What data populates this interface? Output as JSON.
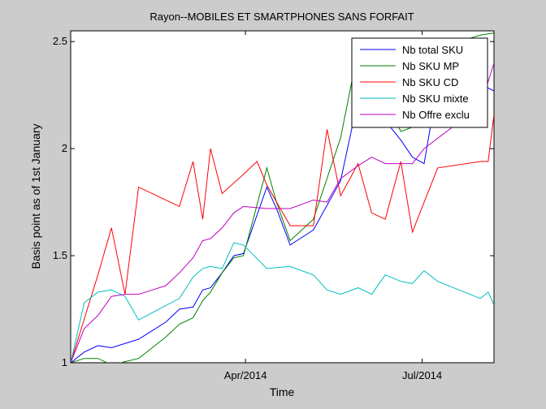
{
  "chart_data": {
    "type": "line",
    "title": "Rayon--MOBILES ET SMARTPHONES SANS FORFAIT",
    "xlabel": "Time",
    "ylabel": "Basis point as of 1st January",
    "xlim": [
      "2014-01-01",
      "2014-08-07"
    ],
    "ylim": [
      1,
      2.55
    ],
    "xticks": [
      {
        "value": "2014-04-01",
        "label": "Apr/2014"
      },
      {
        "value": "2014-07-01",
        "label": "Jul/2014"
      }
    ],
    "yticks": [
      {
        "value": 1,
        "label": "1"
      },
      {
        "value": 1.5,
        "label": "1.5"
      },
      {
        "value": 2,
        "label": "2"
      },
      {
        "value": 2.5,
        "label": "2.5"
      }
    ],
    "grid": false,
    "legend_position": "top-right",
    "series": [
      {
        "name": "Nb total SKU",
        "color": "#0000ff",
        "x": [
          "2014-01-01",
          "2014-01-08",
          "2014-01-15",
          "2014-01-22",
          "2014-02-05",
          "2014-02-12",
          "2014-02-19",
          "2014-02-26",
          "2014-03-05",
          "2014-03-10",
          "2014-03-14",
          "2014-03-20",
          "2014-03-26",
          "2014-03-31",
          "2014-04-12",
          "2014-04-17",
          "2014-04-24",
          "2014-05-06",
          "2014-05-20",
          "2014-05-29",
          "2014-06-05",
          "2014-06-12",
          "2014-06-20",
          "2014-06-26",
          "2014-07-02",
          "2014-07-09",
          "2014-07-31",
          "2014-08-07"
        ],
        "values": [
          1.0,
          1.05,
          1.08,
          1.07,
          1.11,
          1.15,
          1.19,
          1.25,
          1.26,
          1.34,
          1.35,
          1.42,
          1.5,
          1.51,
          1.82,
          1.72,
          1.55,
          1.62,
          1.85,
          2.23,
          2.19,
          2.13,
          2.04,
          1.96,
          1.93,
          2.3,
          2.3,
          2.27
        ]
      },
      {
        "name": "Nb SKU MP",
        "color": "#008000",
        "x": [
          "2014-01-01",
          "2014-01-08",
          "2014-01-15",
          "2014-01-22",
          "2014-02-05",
          "2014-02-12",
          "2014-02-19",
          "2014-02-26",
          "2014-03-05",
          "2014-03-10",
          "2014-03-14",
          "2014-03-20",
          "2014-03-26",
          "2014-03-31",
          "2014-04-12",
          "2014-04-17",
          "2014-04-24",
          "2014-05-06",
          "2014-05-20",
          "2014-05-29",
          "2014-06-05",
          "2014-06-12",
          "2014-06-20",
          "2014-06-26",
          "2014-07-02",
          "2014-07-09",
          "2014-07-31",
          "2014-08-07"
        ],
        "values": [
          1.0,
          1.02,
          1.02,
          0.99,
          1.02,
          1.07,
          1.12,
          1.18,
          1.21,
          1.29,
          1.33,
          1.42,
          1.49,
          1.5,
          1.91,
          1.75,
          1.57,
          1.67,
          2.05,
          2.46,
          2.44,
          2.23,
          2.08,
          2.1,
          2.12,
          2.47,
          2.53,
          2.54
        ]
      },
      {
        "name": "Nb SKU CD",
        "color": "#ff0000",
        "x": [
          "2014-01-01",
          "2014-01-15",
          "2014-01-22",
          "2014-01-29",
          "2014-02-05",
          "2014-02-26",
          "2014-03-05",
          "2014-03-10",
          "2014-03-14",
          "2014-03-20",
          "2014-03-31",
          "2014-04-07",
          "2014-04-12",
          "2014-04-24",
          "2014-05-06",
          "2014-05-13",
          "2014-05-20",
          "2014-05-29",
          "2014-06-05",
          "2014-06-12",
          "2014-06-20",
          "2014-06-26",
          "2014-07-02",
          "2014-07-09",
          "2014-07-31",
          "2014-08-04",
          "2014-08-07"
        ],
        "values": [
          1.0,
          1.41,
          1.63,
          1.32,
          1.82,
          1.73,
          1.94,
          1.67,
          2.0,
          1.79,
          1.88,
          1.94,
          1.83,
          1.64,
          1.64,
          2.09,
          1.78,
          1.93,
          1.7,
          1.67,
          1.94,
          1.61,
          1.75,
          1.91,
          1.94,
          1.94,
          2.16
        ]
      },
      {
        "name": "Nb SKU mixte",
        "color": "#00bfbf",
        "x": [
          "2014-01-01",
          "2014-01-08",
          "2014-01-15",
          "2014-01-22",
          "2014-01-29",
          "2014-02-05",
          "2014-02-26",
          "2014-03-05",
          "2014-03-10",
          "2014-03-14",
          "2014-03-20",
          "2014-03-26",
          "2014-03-31",
          "2014-04-12",
          "2014-04-24",
          "2014-05-06",
          "2014-05-13",
          "2014-05-20",
          "2014-05-29",
          "2014-06-05",
          "2014-06-12",
          "2014-06-20",
          "2014-06-26",
          "2014-07-02",
          "2014-07-09",
          "2014-07-31",
          "2014-08-04",
          "2014-08-07"
        ],
        "values": [
          1.0,
          1.28,
          1.33,
          1.34,
          1.31,
          1.2,
          1.3,
          1.4,
          1.44,
          1.45,
          1.44,
          1.56,
          1.55,
          1.44,
          1.45,
          1.41,
          1.34,
          1.32,
          1.35,
          1.32,
          1.41,
          1.38,
          1.37,
          1.43,
          1.38,
          1.3,
          1.33,
          1.27
        ]
      },
      {
        "name": "Nb Offre exclu",
        "color": "#bf00bf",
        "x": [
          "2014-01-01",
          "2014-01-08",
          "2014-01-15",
          "2014-01-22",
          "2014-01-29",
          "2014-02-05",
          "2014-02-12",
          "2014-02-19",
          "2014-02-26",
          "2014-03-05",
          "2014-03-10",
          "2014-03-14",
          "2014-03-20",
          "2014-03-26",
          "2014-03-31",
          "2014-04-12",
          "2014-04-24",
          "2014-05-06",
          "2014-05-13",
          "2014-05-20",
          "2014-05-29",
          "2014-06-05",
          "2014-06-12",
          "2014-06-20",
          "2014-06-26",
          "2014-07-02",
          "2014-07-31",
          "2014-08-07"
        ],
        "values": [
          1.0,
          1.16,
          1.22,
          1.31,
          1.32,
          1.32,
          1.34,
          1.36,
          1.42,
          1.49,
          1.57,
          1.58,
          1.63,
          1.7,
          1.73,
          1.72,
          1.72,
          1.76,
          1.75,
          1.86,
          1.92,
          1.96,
          1.93,
          1.93,
          1.93,
          2.0,
          2.2,
          2.4
        ]
      }
    ]
  }
}
